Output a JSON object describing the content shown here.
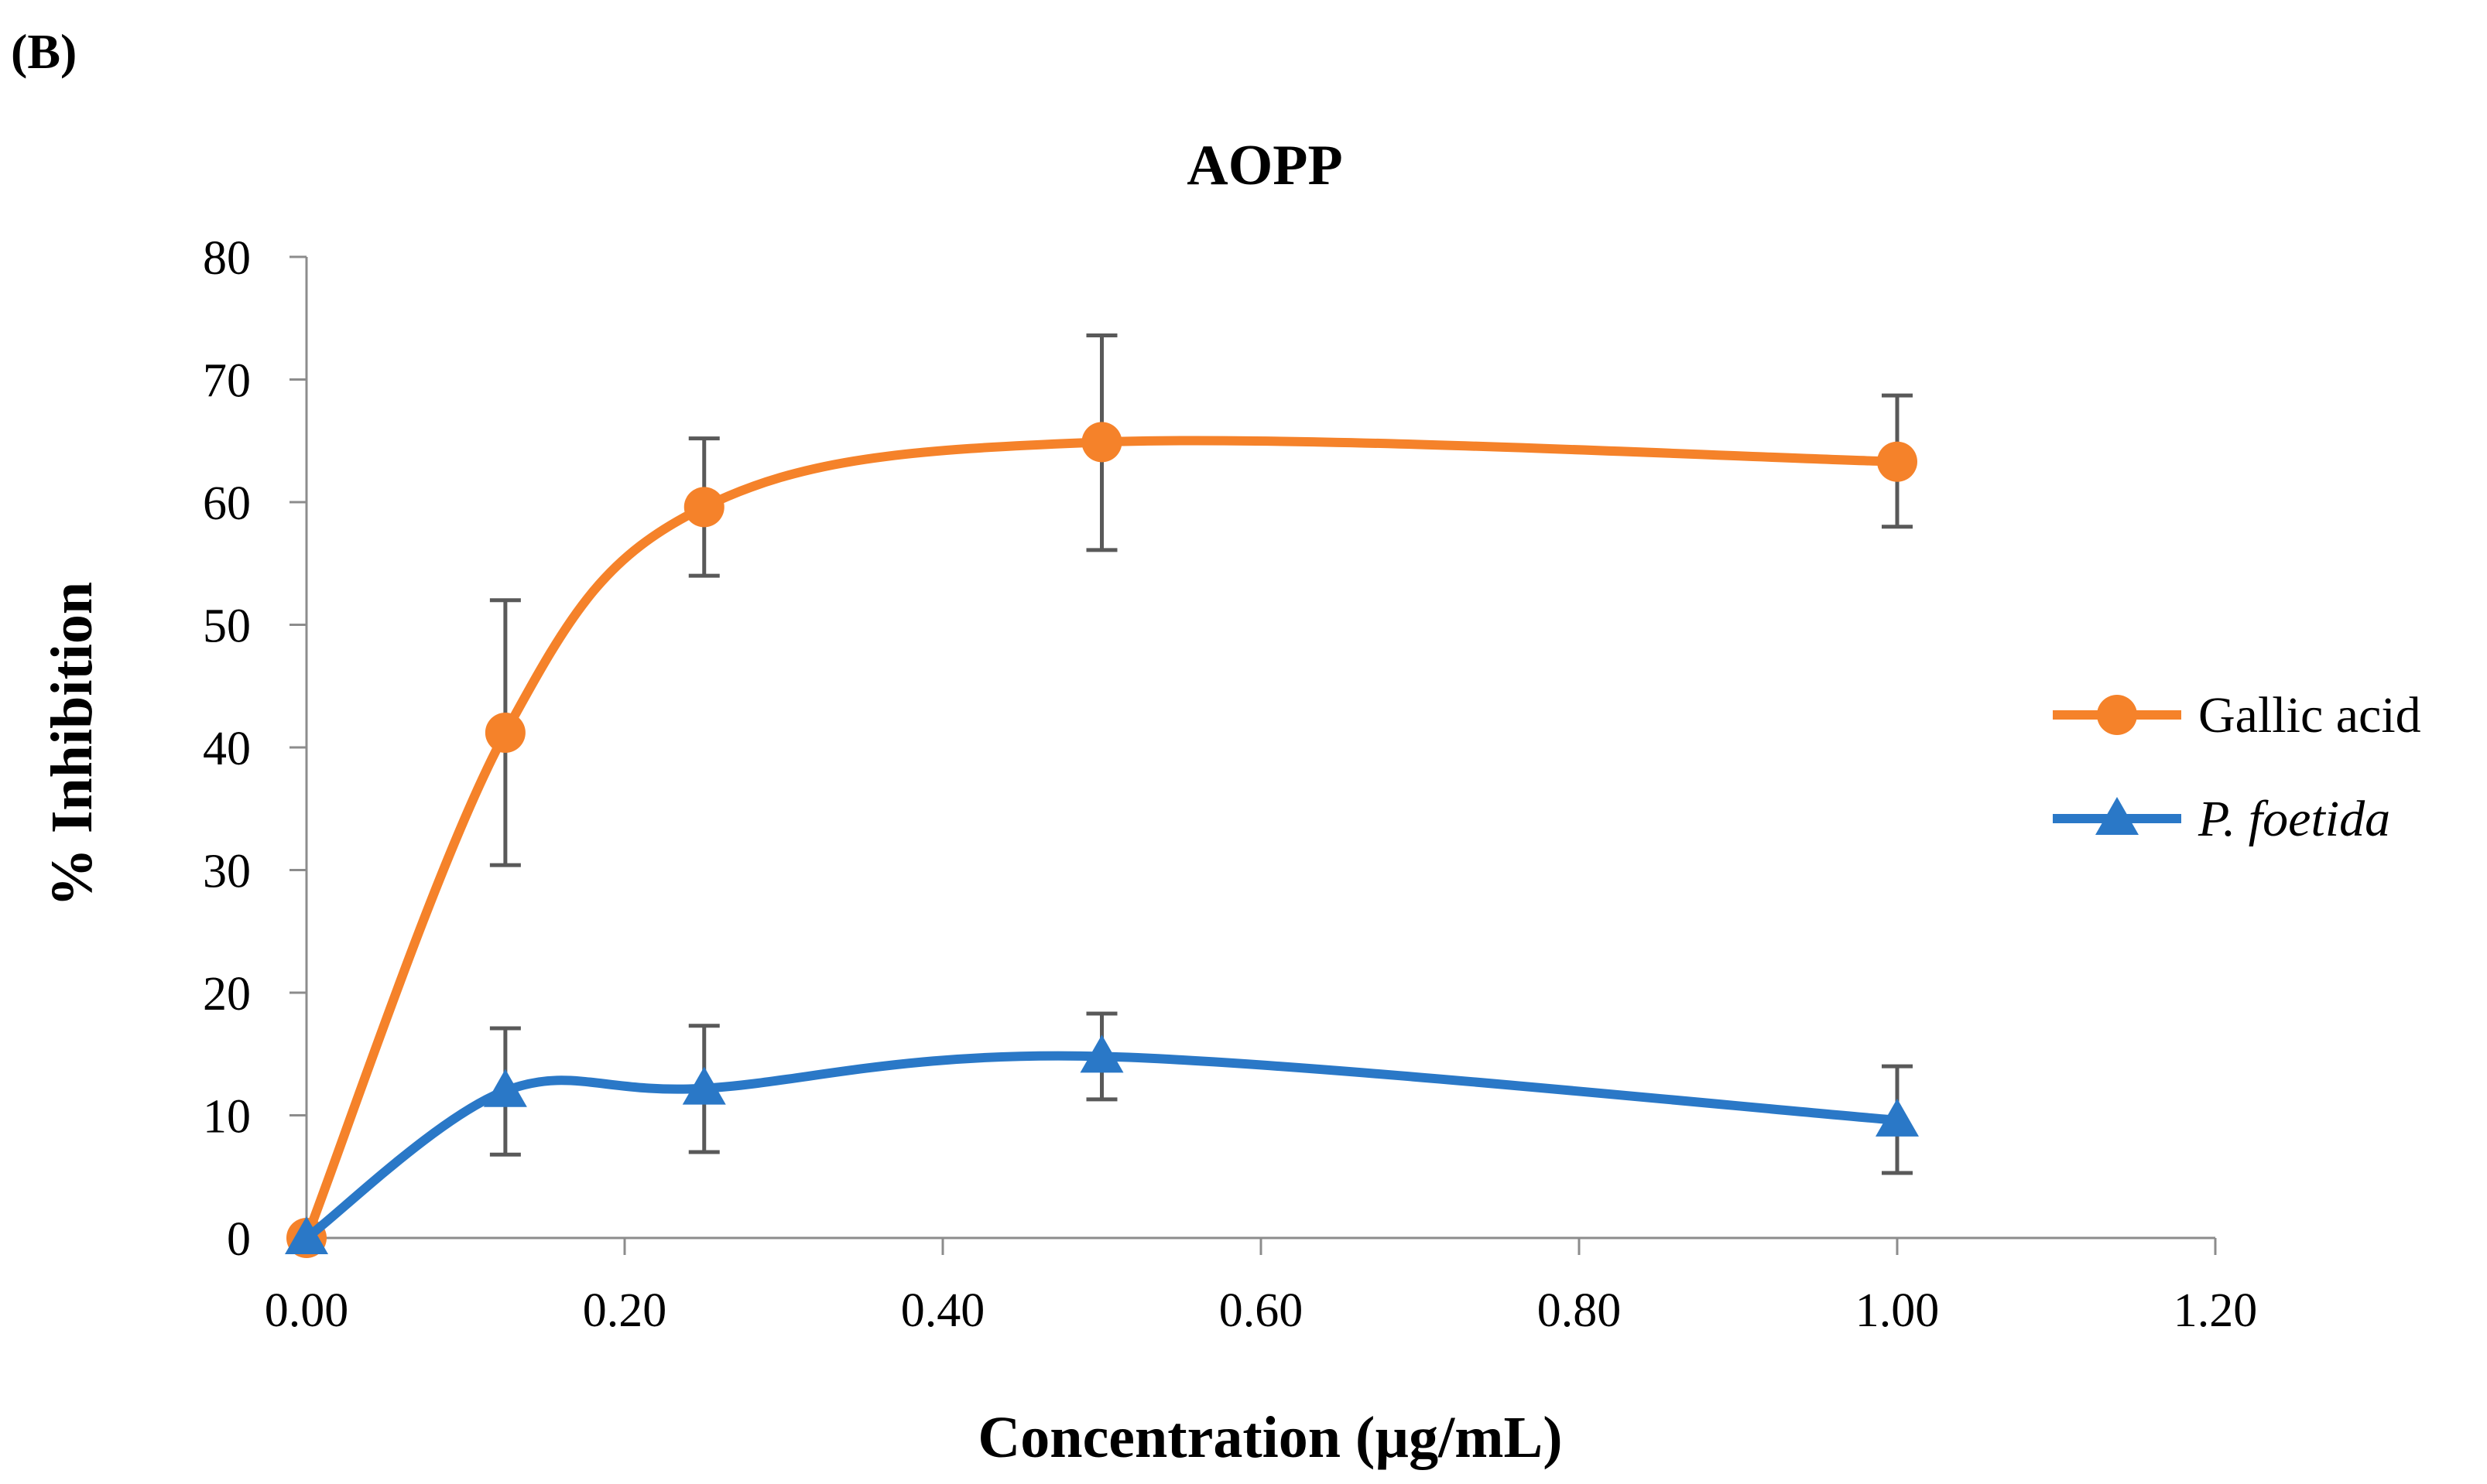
{
  "panel_label": "(B)",
  "chart_data": {
    "type": "line",
    "title": "AOPP",
    "xlabel": "Concentration (µg/mL)",
    "ylabel": "% Inhibition",
    "xlim": [
      0,
      1.2
    ],
    "ylim": [
      0,
      80
    ],
    "x_ticks": [
      "0.00",
      "0.20",
      "0.40",
      "0.60",
      "0.80",
      "1.00",
      "1.20"
    ],
    "y_ticks": [
      "0",
      "10",
      "20",
      "30",
      "40",
      "50",
      "60",
      "70",
      "80"
    ],
    "grid": false,
    "legend_position": "right",
    "x": [
      0,
      0.125,
      0.25,
      0.5,
      1.0
    ],
    "series": [
      {
        "name": "Gallic acid",
        "marker": "circle",
        "color": "#F5822A",
        "values": [
          0,
          41.2,
          59.6,
          64.9,
          63.3
        ],
        "error_low": [
          0,
          30.4,
          54.0,
          56.1,
          58.0
        ],
        "error_high": [
          0,
          52.0,
          65.2,
          73.6,
          68.7
        ]
      },
      {
        "name": "P. foetida",
        "marker": "triangle",
        "color": "#2A78C7",
        "values": [
          0,
          12.0,
          12.2,
          14.8,
          9.6
        ],
        "error_low": [
          0,
          6.8,
          7.0,
          11.3,
          5.3
        ],
        "error_high": [
          0,
          17.1,
          17.3,
          18.3,
          14.0
        ]
      }
    ]
  }
}
